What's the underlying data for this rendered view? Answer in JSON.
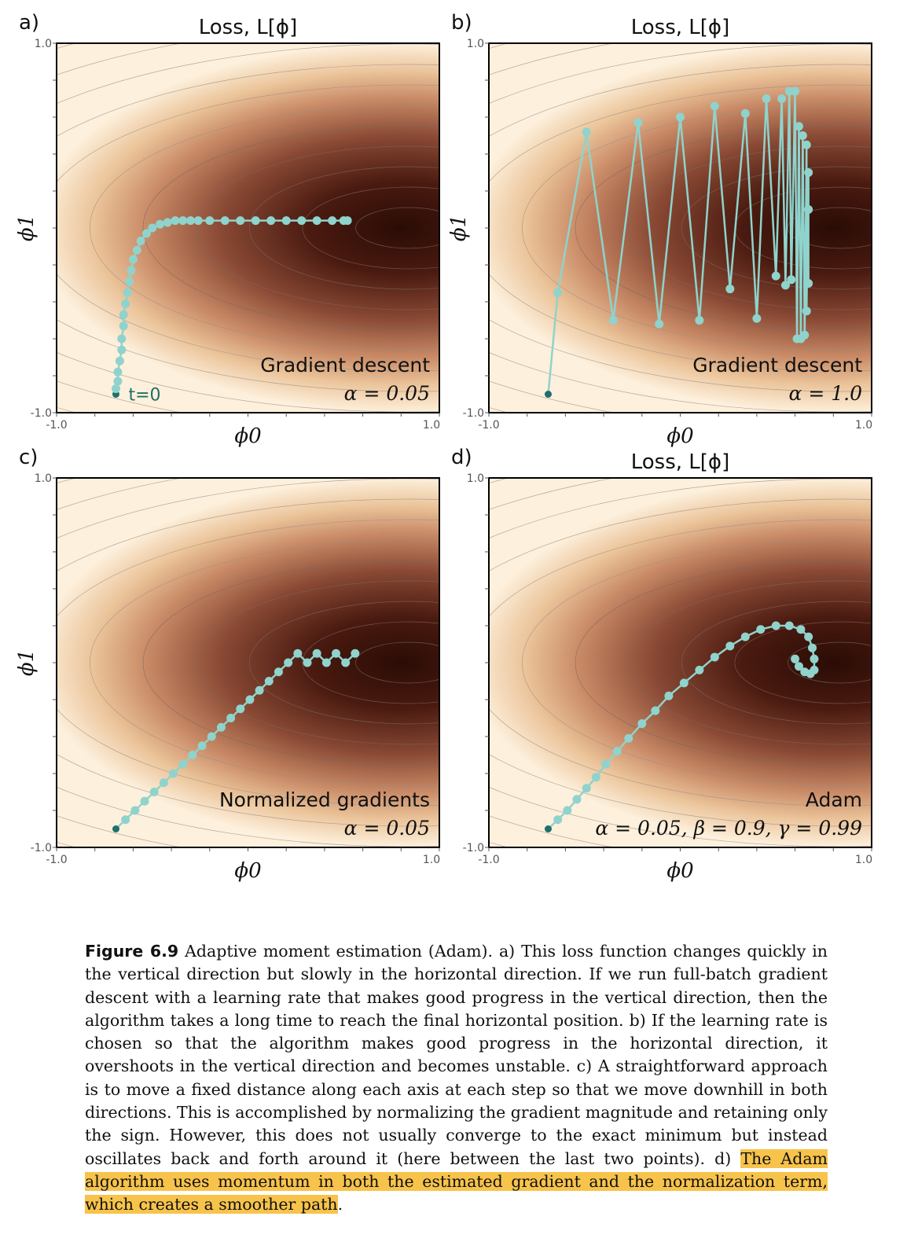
{
  "chart_data": [
    {
      "panel": "a)",
      "type": "line",
      "title": "Loss, L[ϕ]",
      "xlabel": "ϕ0",
      "ylabel": "ϕ1",
      "xlim": [
        -1.0,
        1.0
      ],
      "ylim": [
        -1.0,
        1.0
      ],
      "xticks": [
        "-1.0",
        "1.0"
      ],
      "yticks": [
        "-1.0",
        "1.0"
      ],
      "annotation": "Gradient descent",
      "param_label": "α = 0.05",
      "start_label": "t=0",
      "series": [
        {
          "x": [
            -0.69,
            -0.69,
            -0.68,
            -0.68,
            -0.67,
            -0.66,
            -0.66,
            -0.65,
            -0.65,
            -0.64,
            -0.63,
            -0.62,
            -0.61,
            -0.6,
            -0.58,
            -0.56,
            -0.53,
            -0.5,
            -0.46,
            -0.42,
            -0.38,
            -0.34,
            -0.3,
            -0.26,
            -0.2,
            -0.12,
            -0.04,
            0.04,
            0.12,
            0.2,
            0.28,
            0.36,
            0.44,
            0.5,
            0.52
          ],
          "y": [
            -0.9,
            -0.87,
            -0.83,
            -0.78,
            -0.72,
            -0.66,
            -0.6,
            -0.53,
            -0.47,
            -0.41,
            -0.35,
            -0.29,
            -0.23,
            -0.17,
            -0.12,
            -0.07,
            -0.03,
            0.0,
            0.02,
            0.03,
            0.04,
            0.04,
            0.04,
            0.04,
            0.04,
            0.04,
            0.04,
            0.04,
            0.04,
            0.04,
            0.04,
            0.04,
            0.04,
            0.04,
            0.04
          ]
        }
      ]
    },
    {
      "panel": "b)",
      "type": "line",
      "title": "Loss, L[ϕ]",
      "xlabel": "ϕ0",
      "ylabel": "ϕ1",
      "xlim": [
        -1.0,
        1.0
      ],
      "ylim": [
        -1.0,
        1.0
      ],
      "xticks": [
        "-1.0",
        "1.0"
      ],
      "yticks": [
        "-1.0",
        "1.0"
      ],
      "annotation": "Gradient descent",
      "param_label": "α = 1.0",
      "series": [
        {
          "x": [
            -0.69,
            -0.64,
            -0.49,
            -0.35,
            -0.22,
            -0.11,
            0.0,
            0.1,
            0.18,
            0.26,
            0.34,
            0.4,
            0.45,
            0.5,
            0.53,
            0.55,
            0.57,
            0.58,
            0.6,
            0.61,
            0.62,
            0.63,
            0.64,
            0.65,
            0.66,
            0.66,
            0.67,
            0.67,
            0.67
          ],
          "y": [
            -0.9,
            -0.35,
            0.52,
            -0.5,
            0.57,
            -0.52,
            0.6,
            -0.5,
            0.66,
            -0.33,
            0.62,
            -0.49,
            0.7,
            -0.26,
            0.7,
            -0.31,
            0.74,
            -0.28,
            0.74,
            -0.6,
            0.55,
            -0.6,
            0.5,
            -0.58,
            0.45,
            -0.45,
            0.3,
            -0.3,
            0.1
          ]
        }
      ]
    },
    {
      "panel": "c)",
      "type": "line",
      "title": "",
      "xlabel": "ϕ0",
      "ylabel": "ϕ1",
      "xlim": [
        -1.0,
        1.0
      ],
      "ylim": [
        -1.0,
        1.0
      ],
      "xticks": [
        "-1.0",
        "1.0"
      ],
      "yticks": [
        "-1.0",
        "1.0"
      ],
      "annotation": "Normalized gradients",
      "param_label": "α = 0.05",
      "series": [
        {
          "x": [
            -0.69,
            -0.64,
            -0.59,
            -0.54,
            -0.49,
            -0.44,
            -0.39,
            -0.34,
            -0.29,
            -0.24,
            -0.19,
            -0.14,
            -0.09,
            -0.04,
            0.01,
            0.06,
            0.11,
            0.16,
            0.21,
            0.26,
            0.31,
            0.36,
            0.41,
            0.46,
            0.51,
            0.56
          ],
          "y": [
            -0.9,
            -0.85,
            -0.8,
            -0.75,
            -0.7,
            -0.65,
            -0.6,
            -0.55,
            -0.5,
            -0.45,
            -0.4,
            -0.35,
            -0.3,
            -0.25,
            -0.2,
            -0.15,
            -0.1,
            -0.05,
            0.0,
            0.05,
            0.0,
            0.05,
            0.0,
            0.05,
            0.0,
            0.05
          ]
        }
      ]
    },
    {
      "panel": "d)",
      "type": "line",
      "title": "Loss, L[ϕ]",
      "xlabel": "ϕ0",
      "ylabel": "",
      "xlim": [
        -1.0,
        1.0
      ],
      "ylim": [
        -1.0,
        1.0
      ],
      "xticks": [
        "-1.0",
        "1.0"
      ],
      "yticks": [
        "-1.0",
        "1.0"
      ],
      "annotation": "Adam",
      "param_label": "α = 0.05, β = 0.9, γ = 0.99",
      "series": [
        {
          "x": [
            -0.69,
            -0.64,
            -0.59,
            -0.54,
            -0.49,
            -0.44,
            -0.39,
            -0.33,
            -0.27,
            -0.2,
            -0.13,
            -0.06,
            0.02,
            0.1,
            0.18,
            0.26,
            0.34,
            0.42,
            0.5,
            0.57,
            0.63,
            0.67,
            0.69,
            0.7,
            0.7,
            0.68,
            0.65,
            0.62,
            0.6
          ],
          "y": [
            -0.9,
            -0.85,
            -0.8,
            -0.74,
            -0.68,
            -0.62,
            -0.55,
            -0.48,
            -0.41,
            -0.33,
            -0.26,
            -0.18,
            -0.11,
            -0.04,
            0.03,
            0.09,
            0.14,
            0.18,
            0.2,
            0.2,
            0.18,
            0.14,
            0.08,
            0.02,
            -0.04,
            -0.06,
            -0.05,
            -0.02,
            0.02
          ]
        }
      ]
    }
  ],
  "caption": {
    "label": "Figure 6.9",
    "body": "Adaptive moment estimation (Adam). a) This loss function changes quickly in the vertical direction but slowly in the horizontal direction. If we run full-batch gradient descent with a learning rate that makes good progress in the vertical direction, then the algorithm takes a long time to reach the final horizontal position. b) If the learning rate is chosen so that the algorithm makes good progress in the horizontal direction, it overshoots in the vertical direction and becomes unstable. c) A straightforward approach is to move a fixed distance along each axis at each step so that we move downhill in both directions. This is accomplished by normalizing the gradient magnitude and retaining only the sign. However, this does not usually converge to the exact minimum but instead oscillates back and forth around it (here between the last two points). d)",
    "highlighted": "The Adam algorithm uses momentum in both the estimated gradient and the normalization term, which creates a smoother path",
    "end": "."
  },
  "colors": {
    "path": "#8fd3cc",
    "start_point": "#1f6f6a",
    "loss_low": "#2a0c05",
    "loss_high": "#fdf0dc",
    "highlight": "#f7c34b"
  }
}
